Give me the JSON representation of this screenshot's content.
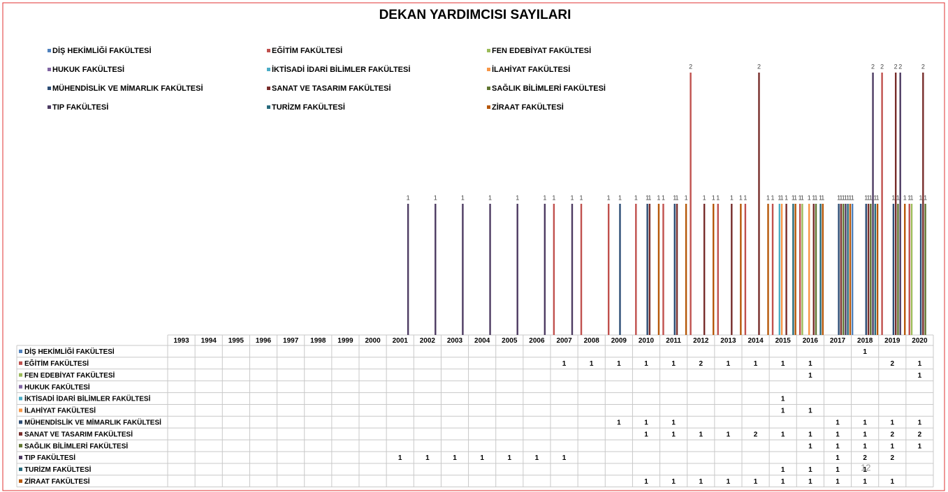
{
  "chart_data": {
    "type": "bar",
    "title": "DEKAN YARDIMCISI SAYILARI",
    "page_number": "12",
    "categories": [
      "1993",
      "1994",
      "1995",
      "1996",
      "1997",
      "1998",
      "1999",
      "2000",
      "2001",
      "2002",
      "2003",
      "2004",
      "2005",
      "2006",
      "2007",
      "2008",
      "2009",
      "2010",
      "2011",
      "2012",
      "2013",
      "2014",
      "2015",
      "2016",
      "2017",
      "2018",
      "2019",
      "2020"
    ],
    "ylim": [
      0,
      2.5
    ],
    "series": [
      {
        "name": "DİŞ HEKİMLİĞİ FAKÜLTESİ",
        "color": "#4f81bd",
        "values": [
          null,
          null,
          null,
          null,
          null,
          null,
          null,
          null,
          null,
          null,
          null,
          null,
          null,
          null,
          null,
          null,
          null,
          null,
          null,
          null,
          null,
          null,
          null,
          null,
          null,
          1,
          null,
          null
        ]
      },
      {
        "name": "EĞİTİM FAKÜLTESİ",
        "color": "#c0504d",
        "values": [
          null,
          null,
          null,
          null,
          null,
          null,
          null,
          null,
          null,
          null,
          null,
          null,
          null,
          null,
          1,
          1,
          1,
          1,
          1,
          2,
          1,
          1,
          1,
          1,
          null,
          null,
          2,
          1
        ]
      },
      {
        "name": "FEN EDEBİYAT FAKÜLTESİ",
        "color": "#9bbb59",
        "values": [
          null,
          null,
          null,
          null,
          null,
          null,
          null,
          null,
          null,
          null,
          null,
          null,
          null,
          null,
          null,
          null,
          null,
          null,
          null,
          null,
          null,
          null,
          null,
          1,
          null,
          null,
          null,
          1
        ]
      },
      {
        "name": "HUKUK FAKÜLTESİ",
        "color": "#8064a2",
        "values": [
          null,
          null,
          null,
          null,
          null,
          null,
          null,
          null,
          null,
          null,
          null,
          null,
          null,
          null,
          null,
          null,
          null,
          null,
          null,
          null,
          null,
          null,
          null,
          null,
          null,
          null,
          null,
          null
        ]
      },
      {
        "name": "İKTİSADİ İDARİ BİLİMLER FAKÜLTESİ",
        "color": "#4bacc6",
        "values": [
          null,
          null,
          null,
          null,
          null,
          null,
          null,
          null,
          null,
          null,
          null,
          null,
          null,
          null,
          null,
          null,
          null,
          null,
          null,
          null,
          null,
          null,
          1,
          null,
          null,
          null,
          null,
          null
        ]
      },
      {
        "name": "İLAHİYAT FAKÜLTESİ",
        "color": "#f79646",
        "values": [
          null,
          null,
          null,
          null,
          null,
          null,
          null,
          null,
          null,
          null,
          null,
          null,
          null,
          null,
          null,
          null,
          null,
          null,
          null,
          null,
          null,
          null,
          1,
          1,
          null,
          null,
          null,
          null
        ]
      },
      {
        "name": "MÜHENDİSLİK VE MİMARLIK FAKÜLTESİ",
        "color": "#2c4d75",
        "values": [
          null,
          null,
          null,
          null,
          null,
          null,
          null,
          null,
          null,
          null,
          null,
          null,
          null,
          null,
          null,
          null,
          1,
          1,
          1,
          null,
          null,
          null,
          null,
          null,
          1,
          1,
          1,
          1
        ]
      },
      {
        "name": "SANAT VE TASARIM FAKÜLTESİ",
        "color": "#772c2a",
        "values": [
          null,
          null,
          null,
          null,
          null,
          null,
          null,
          null,
          null,
          null,
          null,
          null,
          null,
          null,
          null,
          null,
          null,
          1,
          1,
          1,
          1,
          2,
          1,
          1,
          1,
          1,
          2,
          2
        ]
      },
      {
        "name": "SAĞLIK BİLİMLERİ FAKÜLTESİ",
        "color": "#5f7530",
        "values": [
          null,
          null,
          null,
          null,
          null,
          null,
          null,
          null,
          null,
          null,
          null,
          null,
          null,
          null,
          null,
          null,
          null,
          null,
          null,
          null,
          null,
          null,
          null,
          1,
          1,
          1,
          1,
          1
        ]
      },
      {
        "name": "TIP FAKÜLTESİ",
        "color": "#4d3b62",
        "values": [
          null,
          null,
          null,
          null,
          null,
          null,
          null,
          null,
          1,
          1,
          1,
          1,
          1,
          1,
          1,
          null,
          null,
          null,
          null,
          null,
          null,
          null,
          null,
          null,
          1,
          2,
          2,
          null
        ]
      },
      {
        "name": "TURİZM FAKÜLTESİ",
        "color": "#276a7c",
        "values": [
          null,
          null,
          null,
          null,
          null,
          null,
          null,
          null,
          null,
          null,
          null,
          null,
          null,
          null,
          null,
          null,
          null,
          null,
          null,
          null,
          null,
          null,
          1,
          1,
          1,
          1,
          null,
          null
        ]
      },
      {
        "name": "ZİRAAT FAKÜLTESİ",
        "color": "#b65708",
        "values": [
          null,
          null,
          null,
          null,
          null,
          null,
          null,
          null,
          null,
          null,
          null,
          null,
          null,
          null,
          null,
          null,
          null,
          1,
          1,
          1,
          1,
          1,
          1,
          1,
          1,
          1,
          1,
          null
        ]
      }
    ]
  }
}
